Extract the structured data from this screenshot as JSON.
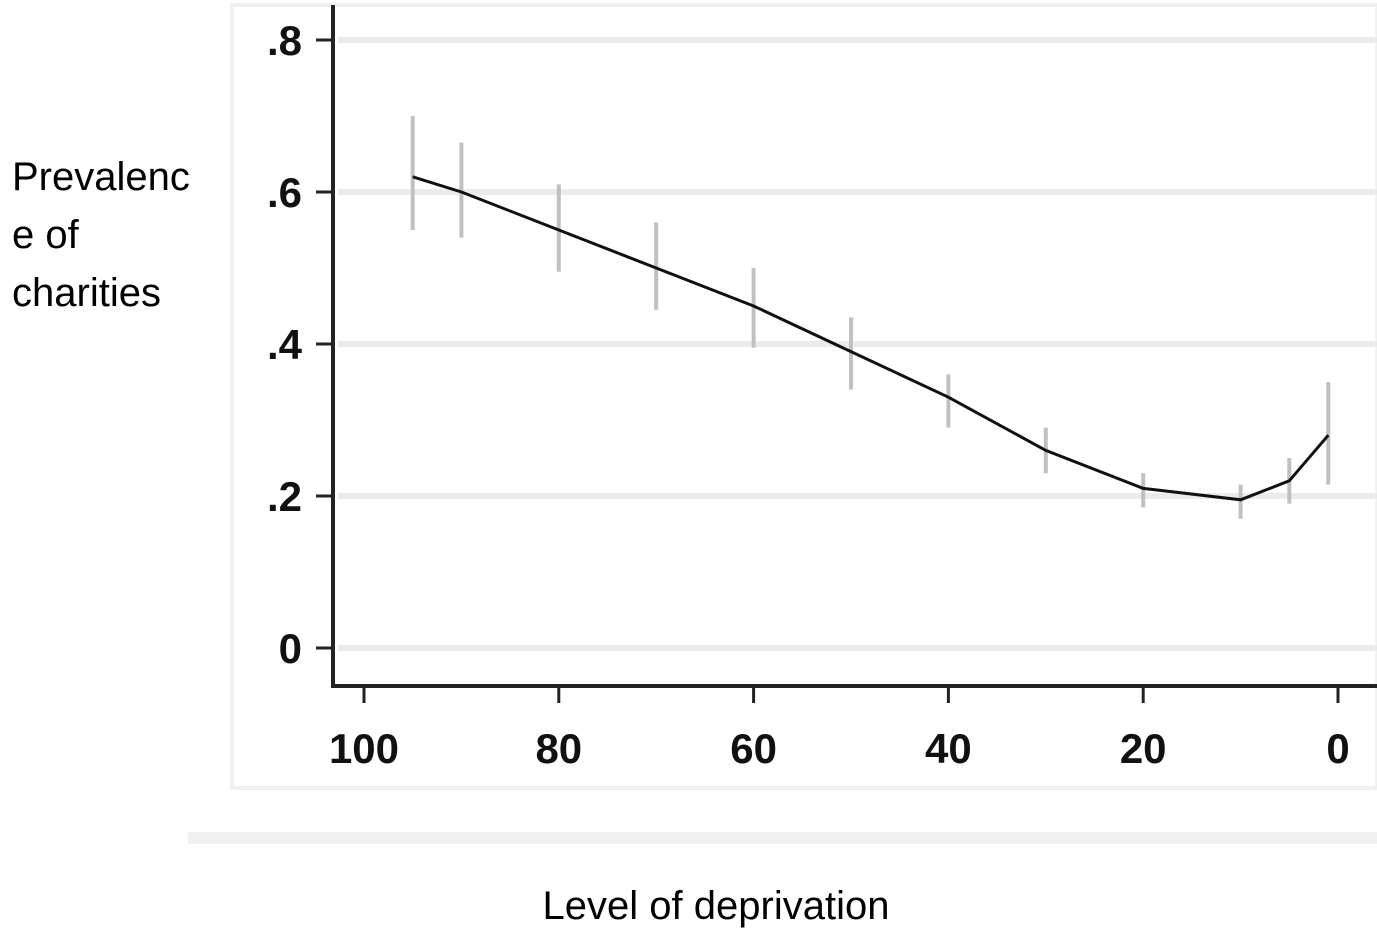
{
  "chart_data": {
    "type": "line",
    "xlabel": "Level of deprivation",
    "ylabel_lines": [
      "Prevalenc",
      "e of",
      "charities"
    ],
    "x_reversed": true,
    "xlim": [
      100,
      0
    ],
    "ylim": [
      0,
      0.8
    ],
    "grid": "horizontal",
    "x_ticks": [
      {
        "value": 100,
        "label": "100"
      },
      {
        "value": 80,
        "label": "80"
      },
      {
        "value": 60,
        "label": "60"
      },
      {
        "value": 40,
        "label": "40"
      },
      {
        "value": 20,
        "label": "20"
      },
      {
        "value": 0,
        "label": "0"
      }
    ],
    "y_ticks": [
      {
        "value": 0,
        "label": "0"
      },
      {
        "value": 0.2,
        "label": ".2"
      },
      {
        "value": 0.4,
        "label": ".4"
      },
      {
        "value": 0.6,
        "label": ".6"
      },
      {
        "value": 0.8,
        "label": ".8"
      }
    ],
    "series": [
      {
        "x": [
          95,
          90,
          80,
          70,
          60,
          50,
          40,
          30,
          20,
          10,
          5,
          1
        ],
        "y": [
          0.62,
          0.6,
          0.55,
          0.5,
          0.45,
          0.39,
          0.33,
          0.26,
          0.21,
          0.195,
          0.22,
          0.28
        ],
        "ci_low": [
          0.55,
          0.54,
          0.495,
          0.445,
          0.395,
          0.34,
          0.29,
          0.23,
          0.185,
          0.17,
          0.19,
          0.215
        ],
        "ci_high": [
          0.7,
          0.665,
          0.61,
          0.56,
          0.5,
          0.435,
          0.36,
          0.29,
          0.23,
          0.215,
          0.25,
          0.35
        ]
      }
    ],
    "colors": {
      "line": "#111111",
      "error_bar": "#c0c0c0",
      "grid": "#ebebeb",
      "axis": "#222222",
      "frame": "#f0f0f0"
    }
  }
}
